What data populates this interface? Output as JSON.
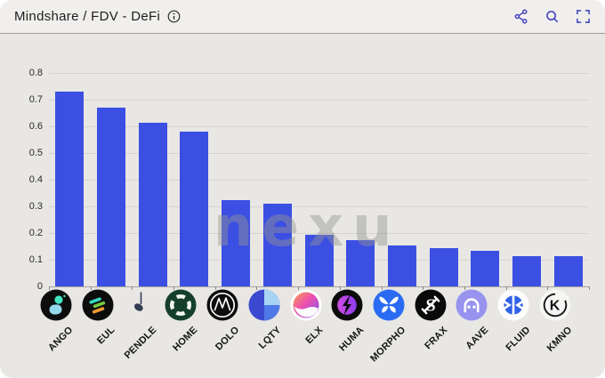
{
  "header": {
    "title": "Mindshare / FDV - DeFi",
    "info_icon": "info-icon",
    "actions": [
      {
        "icon": "share-icon"
      },
      {
        "icon": "search-icon"
      },
      {
        "icon": "fullscreen-icon"
      }
    ]
  },
  "chart_data": {
    "type": "bar",
    "title": "Mindshare / FDV - DeFi",
    "categories": [
      "ANGO",
      "EUL",
      "PENDLE",
      "HOME",
      "DOLO",
      "LQTY",
      "ELX",
      "HUMA",
      "MORPHO",
      "FRAX",
      "AAVE",
      "FLUID",
      "KMNO"
    ],
    "values": [
      0.73,
      0.67,
      0.615,
      0.58,
      0.325,
      0.31,
      0.195,
      0.175,
      0.155,
      0.145,
      0.135,
      0.115,
      0.115
    ],
    "icons": [
      "ango-token-icon",
      "eul-token-icon",
      "pendle-token-icon",
      "home-token-icon",
      "dolo-token-icon",
      "lqty-token-icon",
      "elx-token-icon",
      "huma-token-icon",
      "morpho-token-icon",
      "frax-token-icon",
      "aave-token-icon",
      "fluid-token-icon",
      "kmno-token-icon"
    ],
    "xlabel": "",
    "ylabel": "",
    "ylim": [
      0,
      0.8
    ],
    "yticks": [
      0,
      0.1,
      0.2,
      0.3,
      0.4,
      0.5,
      0.6,
      0.7,
      0.8
    ],
    "grid": true,
    "legend_position": "none",
    "bar_color": "#3c4fe3",
    "watermark": "nexu"
  },
  "colors": {
    "card_bg": "#e8e7e4",
    "header_bg": "#f0efed",
    "accent_icons": "#3d3dbd",
    "bar": "#3c4fe3",
    "gridline": "#d5d4d1",
    "text": "#1d1d1d"
  }
}
